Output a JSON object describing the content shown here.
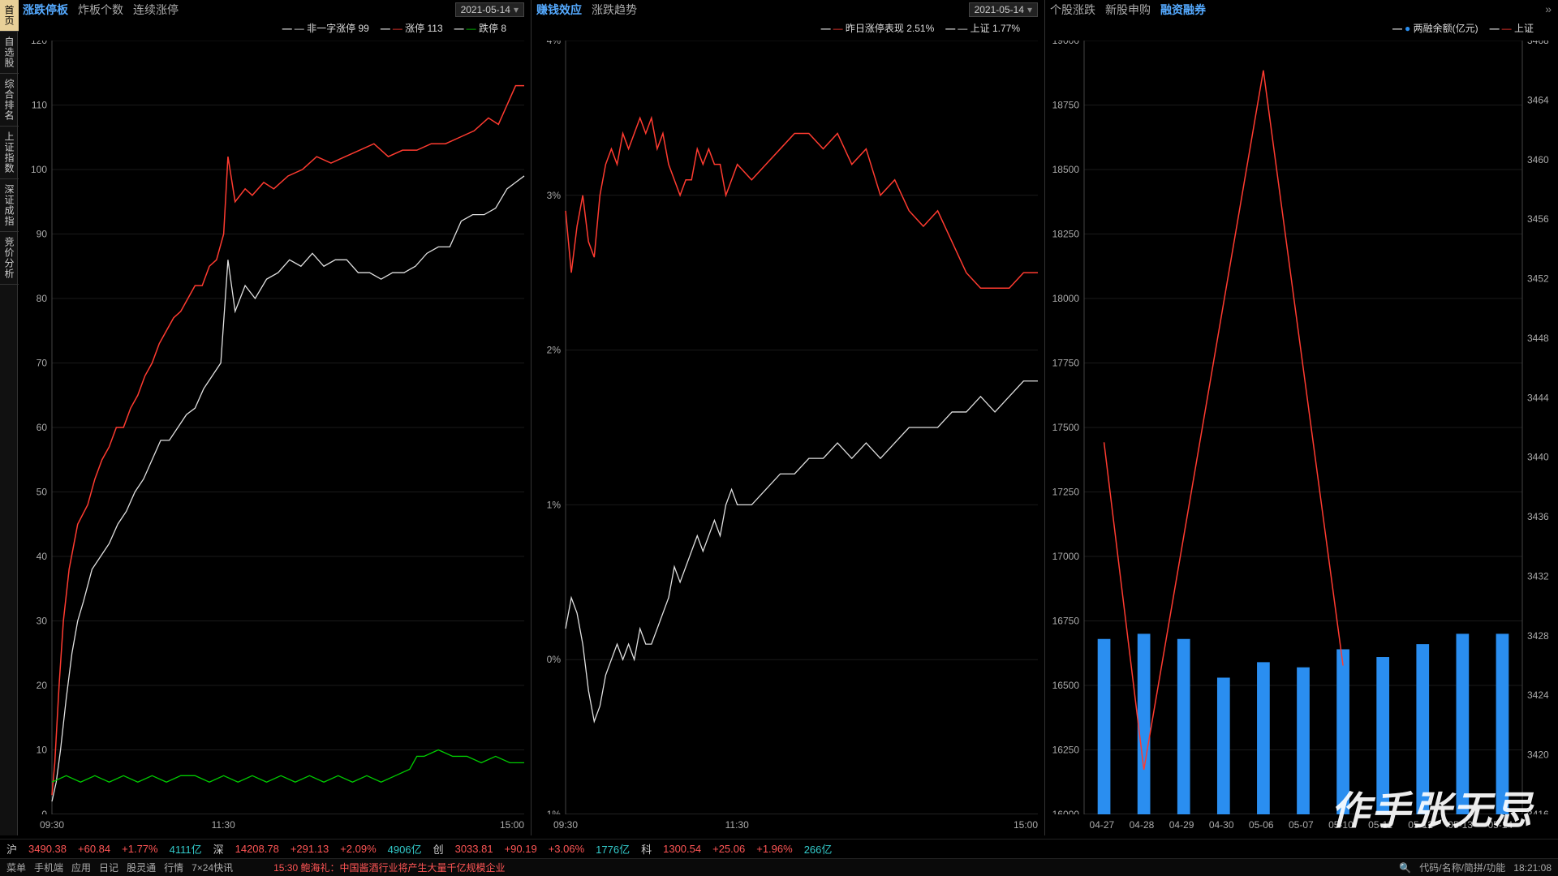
{
  "sidebar": {
    "items": [
      "首页",
      "自选股",
      "综合排名",
      "上证指数",
      "深证成指",
      "竞价分析"
    ],
    "active": 0
  },
  "panel1": {
    "tabs": [
      "涨跌停板",
      "炸板个数",
      "连续涨停"
    ],
    "active": 0,
    "date": "2021-05-14",
    "legend": [
      {
        "label": "非一字涨停 99",
        "color": "#e0e0e0"
      },
      {
        "label": "涨停 113",
        "color": "#ff3b30"
      },
      {
        "label": "跌停 8",
        "color": "#0c0"
      }
    ],
    "ymin": 0,
    "ymax": 120,
    "ystep": 10,
    "xmin": 0,
    "xmax": 330,
    "xticks": [
      {
        "v": 0,
        "lbl": "09:30"
      },
      {
        "v": 120,
        "lbl": "11:30"
      },
      {
        "v": 330,
        "lbl": "15:00"
      }
    ],
    "grid": "#1a1a1a",
    "lines": [
      {
        "color": "#ff3b30",
        "w": 1.5,
        "pts": [
          [
            0,
            3
          ],
          [
            2,
            8
          ],
          [
            5,
            20
          ],
          [
            8,
            30
          ],
          [
            12,
            38
          ],
          [
            18,
            45
          ],
          [
            25,
            48
          ],
          [
            30,
            52
          ],
          [
            35,
            55
          ],
          [
            40,
            57
          ],
          [
            45,
            60
          ],
          [
            50,
            60
          ],
          [
            55,
            63
          ],
          [
            60,
            65
          ],
          [
            65,
            68
          ],
          [
            70,
            70
          ],
          [
            75,
            73
          ],
          [
            80,
            75
          ],
          [
            85,
            77
          ],
          [
            90,
            78
          ],
          [
            95,
            80
          ],
          [
            100,
            82
          ],
          [
            105,
            82
          ],
          [
            110,
            85
          ],
          [
            115,
            86
          ],
          [
            120,
            90
          ],
          [
            123,
            102
          ],
          [
            128,
            95
          ],
          [
            135,
            97
          ],
          [
            140,
            96
          ],
          [
            148,
            98
          ],
          [
            155,
            97
          ],
          [
            165,
            99
          ],
          [
            175,
            100
          ],
          [
            185,
            102
          ],
          [
            195,
            101
          ],
          [
            205,
            102
          ],
          [
            215,
            103
          ],
          [
            225,
            104
          ],
          [
            235,
            102
          ],
          [
            245,
            103
          ],
          [
            255,
            103
          ],
          [
            265,
            104
          ],
          [
            275,
            104
          ],
          [
            285,
            105
          ],
          [
            295,
            106
          ],
          [
            305,
            108
          ],
          [
            312,
            107
          ],
          [
            318,
            110
          ],
          [
            324,
            113
          ],
          [
            330,
            113
          ]
        ]
      },
      {
        "color": "#e0e0e0",
        "w": 1.3,
        "pts": [
          [
            0,
            2
          ],
          [
            3,
            5
          ],
          [
            6,
            10
          ],
          [
            10,
            18
          ],
          [
            14,
            25
          ],
          [
            18,
            30
          ],
          [
            22,
            33
          ],
          [
            28,
            38
          ],
          [
            34,
            40
          ],
          [
            40,
            42
          ],
          [
            46,
            45
          ],
          [
            52,
            47
          ],
          [
            58,
            50
          ],
          [
            64,
            52
          ],
          [
            70,
            55
          ],
          [
            76,
            58
          ],
          [
            82,
            58
          ],
          [
            88,
            60
          ],
          [
            94,
            62
          ],
          [
            100,
            63
          ],
          [
            106,
            66
          ],
          [
            112,
            68
          ],
          [
            118,
            70
          ],
          [
            123,
            86
          ],
          [
            128,
            78
          ],
          [
            135,
            82
          ],
          [
            142,
            80
          ],
          [
            150,
            83
          ],
          [
            158,
            84
          ],
          [
            166,
            86
          ],
          [
            174,
            85
          ],
          [
            182,
            87
          ],
          [
            190,
            85
          ],
          [
            198,
            86
          ],
          [
            206,
            86
          ],
          [
            214,
            84
          ],
          [
            222,
            84
          ],
          [
            230,
            83
          ],
          [
            238,
            84
          ],
          [
            246,
            84
          ],
          [
            254,
            85
          ],
          [
            262,
            87
          ],
          [
            270,
            88
          ],
          [
            278,
            88
          ],
          [
            286,
            92
          ],
          [
            294,
            93
          ],
          [
            302,
            93
          ],
          [
            310,
            94
          ],
          [
            318,
            97
          ],
          [
            324,
            98
          ],
          [
            330,
            99
          ]
        ]
      },
      {
        "color": "#0c0",
        "w": 1.3,
        "pts": [
          [
            0,
            5
          ],
          [
            10,
            6
          ],
          [
            20,
            5
          ],
          [
            30,
            6
          ],
          [
            40,
            5
          ],
          [
            50,
            6
          ],
          [
            60,
            5
          ],
          [
            70,
            6
          ],
          [
            80,
            5
          ],
          [
            90,
            6
          ],
          [
            100,
            6
          ],
          [
            110,
            5
          ],
          [
            120,
            6
          ],
          [
            130,
            5
          ],
          [
            140,
            6
          ],
          [
            150,
            5
          ],
          [
            160,
            6
          ],
          [
            170,
            5
          ],
          [
            180,
            6
          ],
          [
            190,
            5
          ],
          [
            200,
            6
          ],
          [
            210,
            5
          ],
          [
            220,
            6
          ],
          [
            230,
            5
          ],
          [
            240,
            6
          ],
          [
            250,
            7
          ],
          [
            255,
            9
          ],
          [
            260,
            9
          ],
          [
            270,
            10
          ],
          [
            280,
            9
          ],
          [
            290,
            9
          ],
          [
            300,
            8
          ],
          [
            310,
            9
          ],
          [
            320,
            8
          ],
          [
            330,
            8
          ]
        ]
      }
    ]
  },
  "panel2": {
    "tabs": [
      "赚钱效应",
      "涨跌趋势"
    ],
    "active": 0,
    "date": "2021-05-14",
    "legend": [
      {
        "label": "昨日涨停表现 2.51%",
        "color": "#ff3b30"
      },
      {
        "label": "上证 1.77%",
        "color": "#e0e0e0"
      }
    ],
    "ymin": -1,
    "ymax": 4,
    "ystep": 1,
    "ysuffix": "%",
    "xmin": 0,
    "xmax": 330,
    "xticks": [
      {
        "v": 0,
        "lbl": "09:30"
      },
      {
        "v": 120,
        "lbl": "11:30"
      },
      {
        "v": 330,
        "lbl": "15:00"
      }
    ],
    "grid": "#1a1a1a",
    "lines": [
      {
        "color": "#ff3b30",
        "w": 1.5,
        "pts": [
          [
            0,
            2.9
          ],
          [
            4,
            2.5
          ],
          [
            8,
            2.8
          ],
          [
            12,
            3.0
          ],
          [
            16,
            2.7
          ],
          [
            20,
            2.6
          ],
          [
            24,
            3.0
          ],
          [
            28,
            3.2
          ],
          [
            32,
            3.3
          ],
          [
            36,
            3.2
          ],
          [
            40,
            3.4
          ],
          [
            44,
            3.3
          ],
          [
            48,
            3.4
          ],
          [
            52,
            3.5
          ],
          [
            56,
            3.4
          ],
          [
            60,
            3.5
          ],
          [
            64,
            3.3
          ],
          [
            68,
            3.4
          ],
          [
            72,
            3.2
          ],
          [
            76,
            3.1
          ],
          [
            80,
            3.0
          ],
          [
            84,
            3.1
          ],
          [
            88,
            3.1
          ],
          [
            92,
            3.3
          ],
          [
            96,
            3.2
          ],
          [
            100,
            3.3
          ],
          [
            104,
            3.2
          ],
          [
            108,
            3.2
          ],
          [
            112,
            3.0
          ],
          [
            116,
            3.1
          ],
          [
            120,
            3.2
          ],
          [
            130,
            3.1
          ],
          [
            140,
            3.2
          ],
          [
            150,
            3.3
          ],
          [
            160,
            3.4
          ],
          [
            170,
            3.4
          ],
          [
            180,
            3.3
          ],
          [
            190,
            3.4
          ],
          [
            200,
            3.2
          ],
          [
            210,
            3.3
          ],
          [
            220,
            3.0
          ],
          [
            230,
            3.1
          ],
          [
            240,
            2.9
          ],
          [
            250,
            2.8
          ],
          [
            260,
            2.9
          ],
          [
            270,
            2.7
          ],
          [
            280,
            2.5
          ],
          [
            290,
            2.4
          ],
          [
            300,
            2.4
          ],
          [
            310,
            2.4
          ],
          [
            320,
            2.5
          ],
          [
            330,
            2.5
          ]
        ]
      },
      {
        "color": "#e0e0e0",
        "w": 1.3,
        "pts": [
          [
            0,
            0.2
          ],
          [
            4,
            0.4
          ],
          [
            8,
            0.3
          ],
          [
            12,
            0.1
          ],
          [
            16,
            -0.2
          ],
          [
            20,
            -0.4
          ],
          [
            24,
            -0.3
          ],
          [
            28,
            -0.1
          ],
          [
            32,
            0.0
          ],
          [
            36,
            0.1
          ],
          [
            40,
            0.0
          ],
          [
            44,
            0.1
          ],
          [
            48,
            0.0
          ],
          [
            52,
            0.2
          ],
          [
            56,
            0.1
          ],
          [
            60,
            0.1
          ],
          [
            64,
            0.2
          ],
          [
            68,
            0.3
          ],
          [
            72,
            0.4
          ],
          [
            76,
            0.6
          ],
          [
            80,
            0.5
          ],
          [
            84,
            0.6
          ],
          [
            88,
            0.7
          ],
          [
            92,
            0.8
          ],
          [
            96,
            0.7
          ],
          [
            100,
            0.8
          ],
          [
            104,
            0.9
          ],
          [
            108,
            0.8
          ],
          [
            112,
            1.0
          ],
          [
            116,
            1.1
          ],
          [
            120,
            1.0
          ],
          [
            130,
            1.0
          ],
          [
            140,
            1.1
          ],
          [
            150,
            1.2
          ],
          [
            160,
            1.2
          ],
          [
            170,
            1.3
          ],
          [
            180,
            1.3
          ],
          [
            190,
            1.4
          ],
          [
            200,
            1.3
          ],
          [
            210,
            1.4
          ],
          [
            220,
            1.3
          ],
          [
            230,
            1.4
          ],
          [
            240,
            1.5
          ],
          [
            250,
            1.5
          ],
          [
            260,
            1.5
          ],
          [
            270,
            1.6
          ],
          [
            280,
            1.6
          ],
          [
            290,
            1.7
          ],
          [
            300,
            1.6
          ],
          [
            310,
            1.7
          ],
          [
            320,
            1.8
          ],
          [
            330,
            1.8
          ]
        ]
      }
    ]
  },
  "panel3": {
    "tabs": [
      "个股涨跌",
      "新股申购",
      "融资融券"
    ],
    "active": 2,
    "legend": [
      {
        "label": "两融余额(亿元)",
        "color": "#2a8ef0",
        "shape": "dot"
      },
      {
        "label": "上证",
        "color": "#ff3b30"
      }
    ],
    "yL": {
      "min": 16000,
      "max": 19000,
      "step": 250
    },
    "yR": {
      "min": 3416,
      "max": 3468,
      "step": 4
    },
    "grid": "#1a1a1a",
    "categories": [
      "04-27",
      "04-28",
      "04-29",
      "04-30",
      "05-06",
      "05-07",
      "05-10",
      "05-11",
      "05-12",
      "05-13",
      "05-14"
    ],
    "bars": {
      "color": "#2a8ef0",
      "w": 0.32,
      "values": [
        16680,
        16700,
        16680,
        16530,
        16590,
        16570,
        16640,
        16610,
        16660,
        16700,
        16700
      ]
    },
    "line": {
      "color": "#ff3b30",
      "w": 1.5,
      "values": [
        3441,
        3419,
        null,
        null,
        3466,
        null,
        3426,
        null,
        null,
        null,
        null
      ]
    }
  },
  "bottombar": [
    {
      "t": "沪",
      "c": "mk"
    },
    {
      "t": "3490.38",
      "c": "up"
    },
    {
      "t": "+60.84",
      "c": "up"
    },
    {
      "t": "+1.77%",
      "c": "up"
    },
    {
      "t": "4111亿",
      "c": "cy"
    },
    {
      "t": "深",
      "c": "mk"
    },
    {
      "t": "14208.78",
      "c": "up"
    },
    {
      "t": "+291.13",
      "c": "up"
    },
    {
      "t": "+2.09%",
      "c": "up"
    },
    {
      "t": "4906亿",
      "c": "cy"
    },
    {
      "t": "创",
      "c": "mk"
    },
    {
      "t": "3033.81",
      "c": "up"
    },
    {
      "t": "+90.19",
      "c": "up"
    },
    {
      "t": "+3.06%",
      "c": "up"
    },
    {
      "t": "1776亿",
      "c": "cy"
    },
    {
      "t": "科",
      "c": "mk"
    },
    {
      "t": "1300.54",
      "c": "up"
    },
    {
      "t": "+25.06",
      "c": "up"
    },
    {
      "t": "+1.96%",
      "c": "up"
    },
    {
      "t": "266亿",
      "c": "cy"
    }
  ],
  "statusbar": {
    "left": [
      "菜单",
      "手机端",
      "应用",
      "日记",
      "股灵通",
      "行情",
      "7×24快讯"
    ],
    "ticker": "15:30 鲍海礼：中国酱酒行业将产生大量千亿规模企业",
    "ticker_color": "#f55",
    "search": "代码/名称/简拼/功能",
    "time": "18:21:08"
  },
  "watermark": "作手张无忌"
}
